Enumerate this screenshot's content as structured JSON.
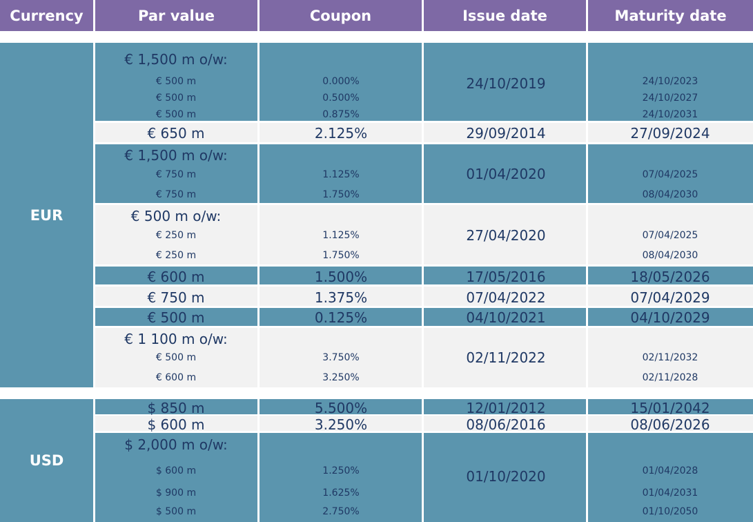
{
  "headers": [
    "Currency",
    "Par value",
    "Coupon",
    "Issue date",
    "Maturity date"
  ],
  "currencies": {
    "eur": "EUR",
    "usd": "USD"
  },
  "eur": [
    {
      "par": "€ 1,500 m o/w:",
      "issue": "24/10/2019",
      "tranches": [
        {
          "par": "€ 500 m",
          "coupon": "0.000%",
          "maturity": "24/10/2023"
        },
        {
          "par": "€ 500 m",
          "coupon": "0.500%",
          "maturity": "24/10/2027"
        },
        {
          "par": "€ 500 m",
          "coupon": "0.875%",
          "maturity": "24/10/2031"
        }
      ]
    },
    {
      "par": "€ 650 m",
      "coupon": "2.125%",
      "issue": "29/09/2014",
      "maturity": "27/09/2024"
    },
    {
      "par": "€ 1,500 m o/w:",
      "issue": "01/04/2020",
      "tranches": [
        {
          "par": "€ 750 m",
          "coupon": "1.125%",
          "maturity": "07/04/2025"
        },
        {
          "par": "€ 750 m",
          "coupon": "1.750%",
          "maturity": "08/04/2030"
        }
      ]
    },
    {
      "par": "€ 500 m o/w:",
      "issue": "27/04/2020",
      "tranches": [
        {
          "par": "€ 250 m",
          "coupon": "1.125%",
          "maturity": "07/04/2025"
        },
        {
          "par": "€ 250 m",
          "coupon": "1.750%",
          "maturity": "08/04/2030"
        }
      ]
    },
    {
      "par": "€ 600 m",
      "coupon": "1.500%",
      "issue": "17/05/2016",
      "maturity": "18/05/2026"
    },
    {
      "par": "€ 750 m",
      "coupon": "1.375%",
      "issue": "07/04/2022",
      "maturity": "07/04/2029"
    },
    {
      "par": "€ 500 m",
      "coupon": "0.125%",
      "issue": "04/10/2021",
      "maturity": "04/10/2029"
    },
    {
      "par": "€ 1 100 m o/w:",
      "issue": "02/11/2022",
      "tranches": [
        {
          "par": "€ 500 m",
          "coupon": "3.750%",
          "maturity": "02/11/2032"
        },
        {
          "par": "€ 600 m",
          "coupon": "3.250%",
          "maturity": "02/11/2028"
        }
      ]
    }
  ],
  "usd": [
    {
      "par": "$ 850 m",
      "coupon": "5.500%",
      "issue": "12/01/2012",
      "maturity": "15/01/2042"
    },
    {
      "par": "$ 600  m",
      "coupon": "3.250%",
      "issue": "08/06/2016",
      "maturity": "08/06/2026"
    },
    {
      "par": "$ 2,000 m o/w:",
      "issue": "01/10/2020",
      "tranches": [
        {
          "par": "$ 600 m",
          "coupon": "1.250%",
          "maturity": "01/04/2028"
        },
        {
          "par": "$ 900 m",
          "coupon": "1.625%",
          "maturity": "01/04/2031"
        },
        {
          "par": "$ 500 m",
          "coupon": "2.750%",
          "maturity": "01/10/2050"
        }
      ]
    }
  ]
}
